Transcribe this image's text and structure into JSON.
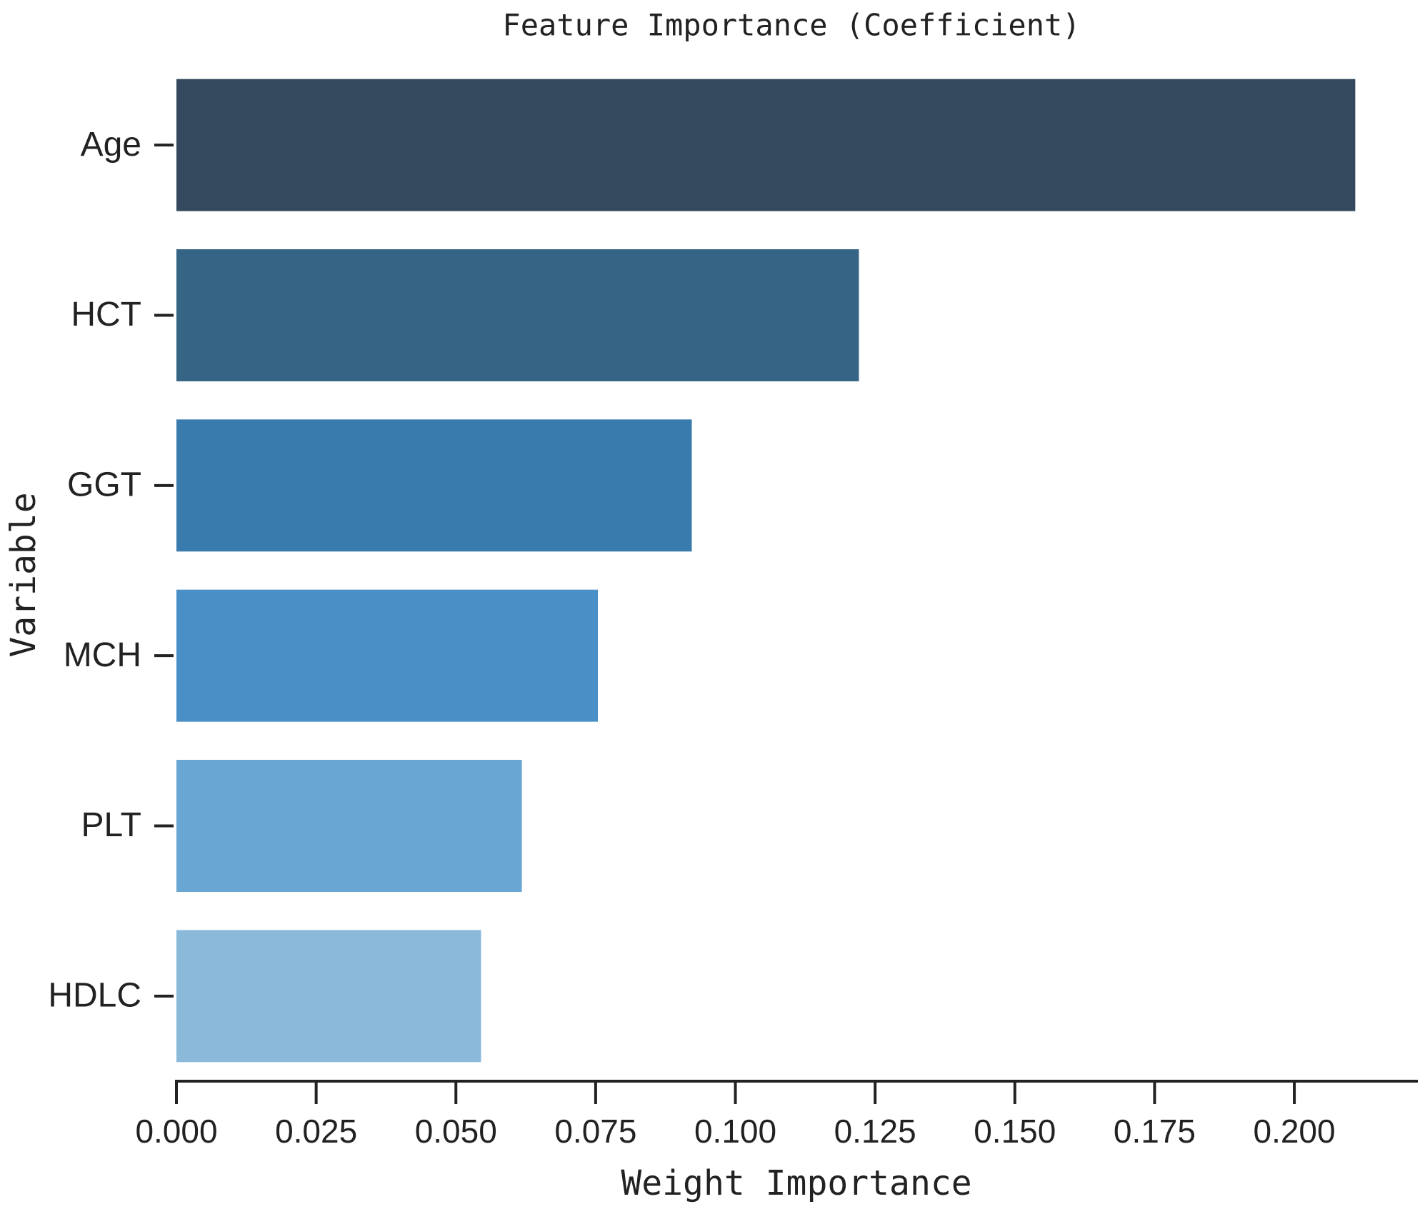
{
  "chart_data": {
    "type": "barh",
    "title": "Feature Importance (Coefficient)",
    "x_label": "Weight Importance",
    "y_label": "Variable",
    "categories": [
      "Age",
      "HCT",
      "GGT",
      "MCH",
      "PLT",
      "HDLC"
    ],
    "values": [
      0.2109,
      0.1221,
      0.0922,
      0.0754,
      0.0618,
      0.0545
    ],
    "colors": [
      "#34495e",
      "#366485",
      "#3a7bad",
      "#4a90c6",
      "#6aa6d3",
      "#8ab9da"
    ],
    "xlim": [
      0,
      0.2221
    ],
    "xticks": [
      {
        "value": 0,
        "label": "0.000"
      },
      0.025,
      {
        "value": 0.05,
        "label": "0.050"
      },
      0.075,
      {
        "value": 0.1,
        "label": "0.100"
      },
      0.125,
      {
        "value": 0.15,
        "label": "0.150"
      },
      0.175,
      {
        "value": 0.2,
        "label": "0.200"
      }
    ]
  }
}
